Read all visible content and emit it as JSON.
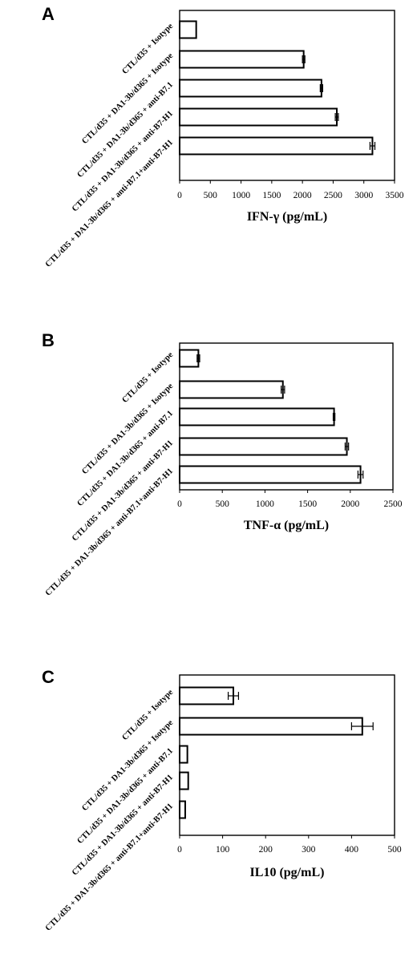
{
  "chart_data": [
    {
      "type": "bar",
      "orientation": "horizontal",
      "panel": "A",
      "categories": [
        "CTL/d35 + Isotype",
        "CTL/d35 + DA1-3b/d365 + Isotype",
        "CTL/d35 + DA1-3b/d365 + anti-B7.1",
        "CTL/d35 + DA1-3b/d365 + anti-B7-H1",
        "CTL/d35 + DA1-3b/d365 + anti-B7.1+anti-B7-H1"
      ],
      "values": [
        270,
        2020,
        2310,
        2560,
        3140
      ],
      "errors": [
        0,
        20,
        20,
        25,
        40
      ],
      "xlabel": "IFN-γ (pg/mL)",
      "xlim": [
        0,
        3500
      ],
      "xticks": [
        0,
        500,
        1000,
        1500,
        2000,
        2500,
        3000,
        3500
      ]
    },
    {
      "type": "bar",
      "orientation": "horizontal",
      "panel": "B",
      "categories": [
        "CTL/d35 + Isotype",
        "CTL/d35 + DA1-3b/d365 + Isotype",
        "CTL/d35 + DA1-3b/d365 + anti-B7.1",
        "CTL/d35 + DA1-3b/d365 + anti-B7-H1",
        "CTL/d35 + DA1-3b/d365 + anti-B7.1+anti-B7-H1"
      ],
      "values": [
        220,
        1210,
        1810,
        1960,
        2120
      ],
      "errors": [
        15,
        20,
        10,
        20,
        30
      ],
      "xlabel": "TNF-α (pg/mL)",
      "xlim": [
        0,
        2500
      ],
      "xticks": [
        0,
        500,
        1000,
        1500,
        2000,
        2500
      ]
    },
    {
      "type": "bar",
      "orientation": "horizontal",
      "panel": "C",
      "categories": [
        "CTL/d35 + Isotype",
        "CTL/d35 + DA1-3b/d365 + Isotype",
        "CTL/d35 + DA1-3b/d365 + anti-B7.1",
        "CTL/d35 + DA1-3b/d365 + anti-B7-H1",
        "CTL/d35 + DA1-3b/d365 + anti-B7.1+anti-B7-H1"
      ],
      "values": [
        125,
        425,
        18,
        20,
        13
      ],
      "errors": [
        12,
        25,
        0,
        0,
        0
      ],
      "xlabel": "IL10 (pg/mL)",
      "xlim": [
        0,
        500
      ],
      "xticks": [
        0,
        100,
        200,
        300,
        400,
        500
      ]
    }
  ]
}
